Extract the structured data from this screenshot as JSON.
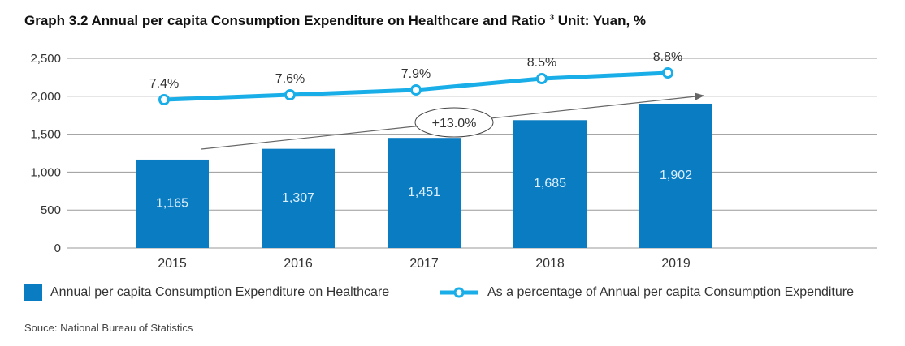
{
  "title": "Graph 3.2 Annual per capita Consumption Expenditure on Healthcare and Ratio",
  "title_sup": "3",
  "title_unit": "Unit: Yuan, %",
  "source": "Souce: National Bureau of Statistics",
  "colors": {
    "bar": "#0a7cc1",
    "line": "#19aee8",
    "grid": "#9a9a9a",
    "arrow": "#666666"
  },
  "legend": {
    "bar_label": "Annual per capita Consumption Expenditure on Healthcare",
    "line_label": "As a percentage of Annual per capita Consumption Expenditure"
  },
  "chart_data": {
    "type": "bar",
    "categories": [
      "2015",
      "2016",
      "2017",
      "2018",
      "2019"
    ],
    "series": [
      {
        "name": "Annual per capita Consumption Expenditure on Healthcare",
        "type": "bar",
        "values": [
          1165,
          1307,
          1451,
          1685,
          1902
        ],
        "labels": [
          "1,165",
          "1,307",
          "1,451",
          "1,685",
          "1,902"
        ]
      },
      {
        "name": "As a percentage of Annual per capita Consumption Expenditure",
        "type": "line",
        "values": [
          7.4,
          7.6,
          7.9,
          8.5,
          8.8
        ],
        "labels": [
          "7.4%",
          "7.6%",
          "7.9%",
          "8.5%",
          "8.8%"
        ]
      }
    ],
    "ylim": [
      0,
      2500
    ],
    "yticks": [
      0,
      500,
      1000,
      1500,
      2000,
      2500
    ],
    "ytick_labels": [
      "0",
      "500",
      "1,000",
      "1,500",
      "2,000",
      "2,500"
    ],
    "grid": true,
    "legend_position": "bottom",
    "annotation": "+13.0%"
  }
}
